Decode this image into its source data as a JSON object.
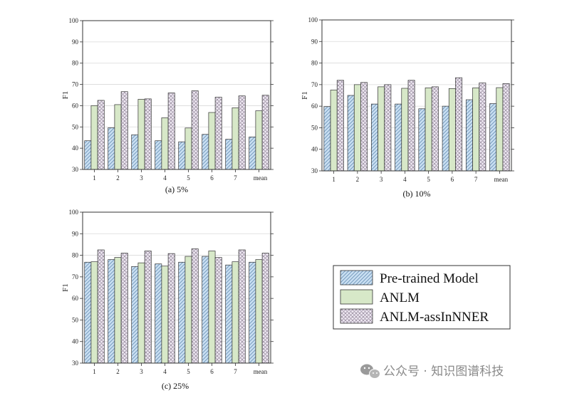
{
  "chart_data": [
    {
      "type": "bar",
      "caption": "(a) 5%",
      "ylabel": "F1",
      "xlabel": "",
      "ylim": [
        30,
        100
      ],
      "yticks": [
        30,
        40,
        50,
        60,
        70,
        80,
        90,
        100
      ],
      "categories": [
        "1",
        "2",
        "3",
        "4",
        "5",
        "6",
        "7",
        "mean"
      ],
      "series": [
        {
          "name": "Pre-trained Model",
          "values": [
            43.5,
            49.6,
            46.3,
            43.5,
            43.0,
            46.5,
            44.2,
            45.3
          ]
        },
        {
          "name": "ANLM",
          "values": [
            60.0,
            60.5,
            63.0,
            54.3,
            49.5,
            56.8,
            59.0,
            57.6
          ]
        },
        {
          "name": "ANLM-assInNNER",
          "values": [
            62.5,
            66.6,
            63.2,
            66.0,
            67.0,
            64.0,
            64.6,
            64.9
          ]
        }
      ]
    },
    {
      "type": "bar",
      "caption": "(b) 10%",
      "ylabel": "F1",
      "xlabel": "",
      "ylim": [
        30,
        100
      ],
      "yticks": [
        30,
        40,
        50,
        60,
        70,
        80,
        90,
        100
      ],
      "categories": [
        "1",
        "2",
        "3",
        "4",
        "5",
        "6",
        "7",
        "mean"
      ],
      "series": [
        {
          "name": "Pre-trained Model",
          "values": [
            59.8,
            65.0,
            61.0,
            61.0,
            58.8,
            60.0,
            63.0,
            61.2
          ]
        },
        {
          "name": "ANLM",
          "values": [
            67.5,
            70.0,
            69.0,
            68.3,
            68.5,
            68.2,
            68.5,
            68.6
          ]
        },
        {
          "name": "ANLM-assInNNER",
          "values": [
            72.0,
            71.0,
            70.0,
            72.0,
            69.0,
            73.2,
            70.8,
            70.5
          ]
        }
      ]
    },
    {
      "type": "bar",
      "caption": "(c) 25%",
      "ylabel": "F1",
      "xlabel": "",
      "ylim": [
        30,
        100
      ],
      "yticks": [
        30,
        40,
        50,
        60,
        70,
        80,
        90,
        100
      ],
      "categories": [
        "1",
        "2",
        "3",
        "4",
        "5",
        "6",
        "7",
        "mean"
      ],
      "series": [
        {
          "name": "Pre-trained Model",
          "values": [
            76.8,
            78.0,
            74.8,
            76.0,
            76.8,
            79.5,
            75.5,
            76.8
          ]
        },
        {
          "name": "ANLM",
          "values": [
            77.0,
            79.0,
            76.5,
            75.0,
            79.5,
            82.0,
            77.0,
            78.0
          ]
        },
        {
          "name": "ANLM-assInNNER",
          "values": [
            82.5,
            81.0,
            82.0,
            80.8,
            83.0,
            79.0,
            82.5,
            81.0
          ]
        }
      ]
    }
  ],
  "legend": {
    "items": [
      {
        "label": "Pre-trained Model",
        "pattern": "diag",
        "fill": "#c9dff2"
      },
      {
        "label": "ANLM",
        "pattern": "plain",
        "fill": "#d7e8c8"
      },
      {
        "label": "ANLM-assInNNER",
        "pattern": "cross",
        "fill": "#efe9f3"
      }
    ]
  },
  "watermark": {
    "icon": "wechat-icon",
    "text": "公众号 · 知识图谱科技"
  },
  "colors": {
    "series_fills": [
      "#c9dff2",
      "#d7e8c8",
      "#efe9f3"
    ],
    "diag_stroke": "#6e94b8",
    "cross_stroke": "#8f8396",
    "bar_outline": "#333333",
    "grid": "#d9d9d9"
  }
}
